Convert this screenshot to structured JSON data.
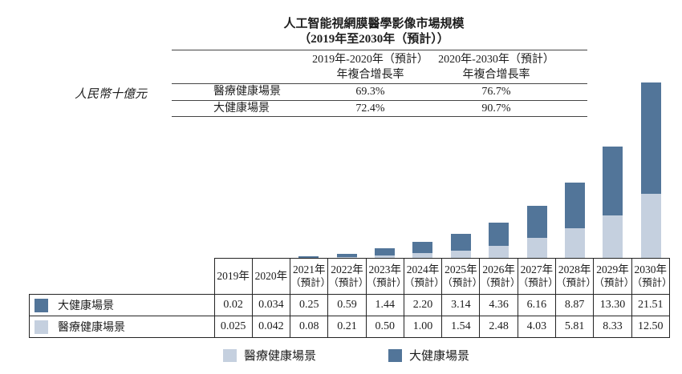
{
  "title": {
    "line1": "人工智能視網膜醫學影像市場規模",
    "line2": "（2019年至2030年（預計））"
  },
  "y_axis_label": "人民幣十億元",
  "colors": {
    "medical_light_blue": "#c5d0df",
    "big_health_dark_blue": "#527599",
    "table_border": "#242424",
    "rule_line": "#454545"
  },
  "cagr_table": {
    "col_headers": [
      {
        "period": "2019年-2020年（預計）",
        "metric": "年複合增長率"
      },
      {
        "period": "2020年-2030年（預計）",
        "metric": "年複合增長率"
      }
    ],
    "rows": [
      {
        "label": "醫療健康場景",
        "values": [
          "69.3%",
          "76.7%"
        ]
      },
      {
        "label": "大健康場景",
        "values": [
          "72.4%",
          "90.7%"
        ]
      }
    ]
  },
  "chart_data": {
    "type": "bar",
    "stacked": true,
    "title": "人工智能視網膜醫學影像市場規模（2019年至2030年（預計））",
    "xlabel": "",
    "ylabel": "人民幣十億元",
    "ylim": [
      0,
      35
    ],
    "grid": false,
    "legend_position": "bottom",
    "categories": [
      "2019年",
      "2020年",
      "2021年（預計）",
      "2022年（預計）",
      "2023年（預計）",
      "2024年（預計）",
      "2025年（預計）",
      "2026年（預計）",
      "2027年（預計）",
      "2028年（預計）",
      "2029年（預計）",
      "2030年（預計）"
    ],
    "series": [
      {
        "name": "醫療健康場景",
        "color": "#c5d0df",
        "values": [
          0.025,
          0.042,
          0.08,
          0.21,
          0.5,
          1.0,
          1.54,
          2.48,
          4.03,
          5.81,
          8.33,
          12.5
        ]
      },
      {
        "name": "大健康場景",
        "color": "#527599",
        "values": [
          0.02,
          0.034,
          0.25,
          0.59,
          1.44,
          2.2,
          3.14,
          4.36,
          6.16,
          8.87,
          13.3,
          21.51
        ]
      }
    ]
  },
  "data_table": {
    "col_headers": [
      {
        "year": "2019年",
        "note": ""
      },
      {
        "year": "2020年",
        "note": ""
      },
      {
        "year": "2021年",
        "note": "（預計）"
      },
      {
        "year": "2022年",
        "note": "（預計）"
      },
      {
        "year": "2023年",
        "note": "（預計）"
      },
      {
        "year": "2024年",
        "note": "（預計）"
      },
      {
        "year": "2025年",
        "note": "（預計）"
      },
      {
        "year": "2026年",
        "note": "（預計）"
      },
      {
        "year": "2027年",
        "note": "（預計）"
      },
      {
        "year": "2028年",
        "note": "（預計）"
      },
      {
        "year": "2029年",
        "note": "（預計）"
      },
      {
        "year": "2030年",
        "note": "（預計）"
      }
    ],
    "rows": [
      {
        "label": "大健康場景",
        "color": "#527599",
        "values": [
          "0.02",
          "0.034",
          "0.25",
          "0.59",
          "1.44",
          "2.20",
          "3.14",
          "4.36",
          "6.16",
          "8.87",
          "13.30",
          "21.51"
        ]
      },
      {
        "label": "醫療健康場景",
        "color": "#c5d0df",
        "values": [
          "0.025",
          "0.042",
          "0.08",
          "0.21",
          "0.50",
          "1.00",
          "1.54",
          "2.48",
          "4.03",
          "5.81",
          "8.33",
          "12.50"
        ]
      }
    ]
  },
  "legend": [
    {
      "label": "醫療健康場景",
      "color": "#c5d0df"
    },
    {
      "label": "大健康場景",
      "color": "#527599"
    }
  ]
}
